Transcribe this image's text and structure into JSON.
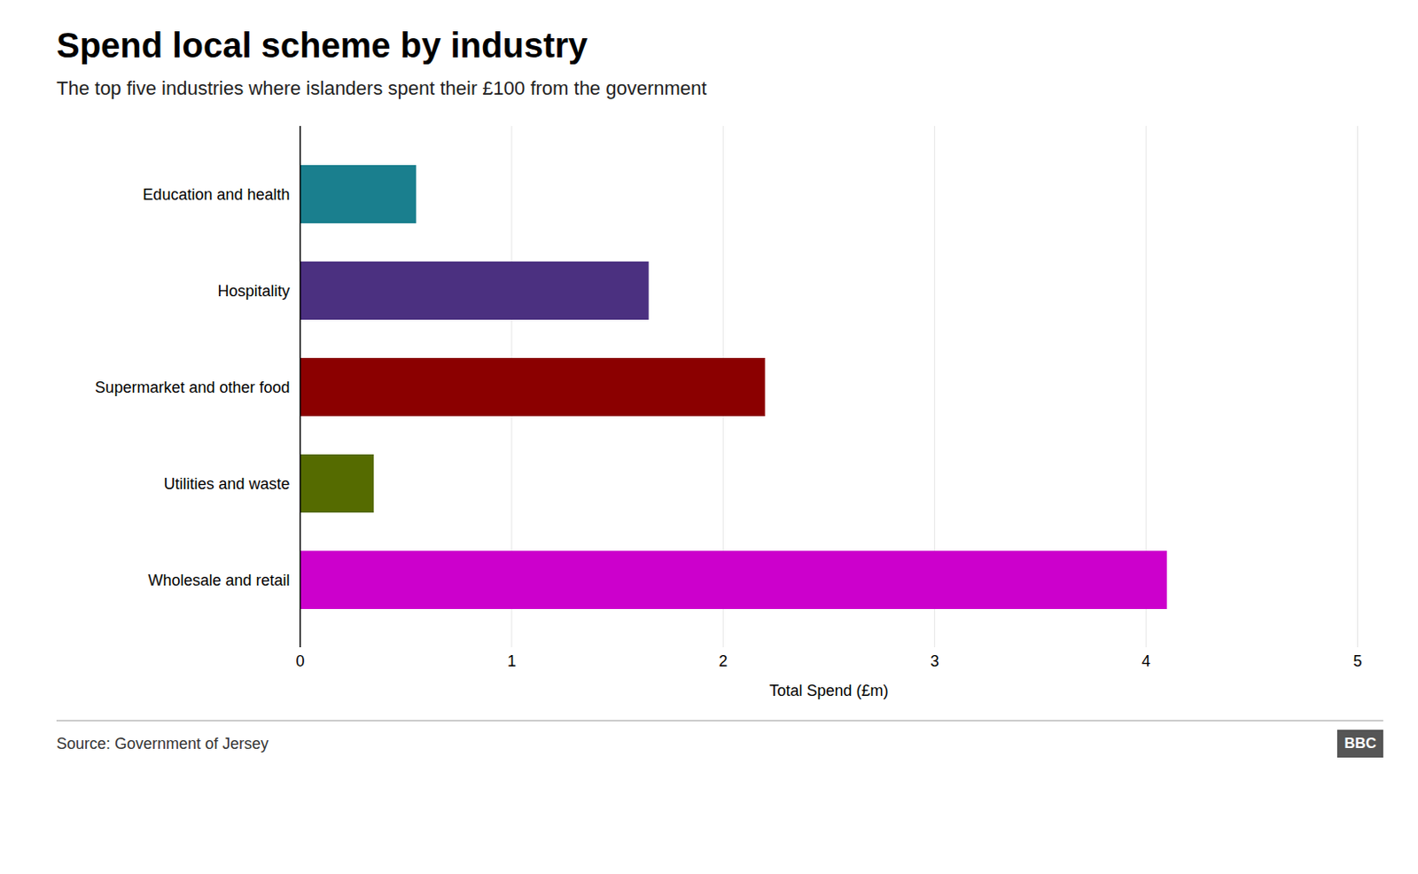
{
  "chart_data": {
    "type": "bar",
    "orientation": "horizontal",
    "title": "Spend local scheme by industry",
    "subtitle": "The top five industries where islanders spent their £100 from the government",
    "categories": [
      "Education and health",
      "Hospitality",
      "Supermarket and other food",
      "Utilities and waste",
      "Wholesale and retail"
    ],
    "values": [
      0.55,
      1.65,
      2.2,
      0.35,
      4.1
    ],
    "colors": [
      "#1a7f8e",
      "#4b3080",
      "#8b0000",
      "#556b00",
      "#cc00cc"
    ],
    "xlabel": "Total Spend (£m)",
    "xlim": [
      0,
      5
    ],
    "xticks": [
      0,
      1,
      2,
      3,
      4,
      5
    ],
    "grid": true,
    "source": "Source: Government of Jersey",
    "annotations": [
      "BBC"
    ]
  }
}
